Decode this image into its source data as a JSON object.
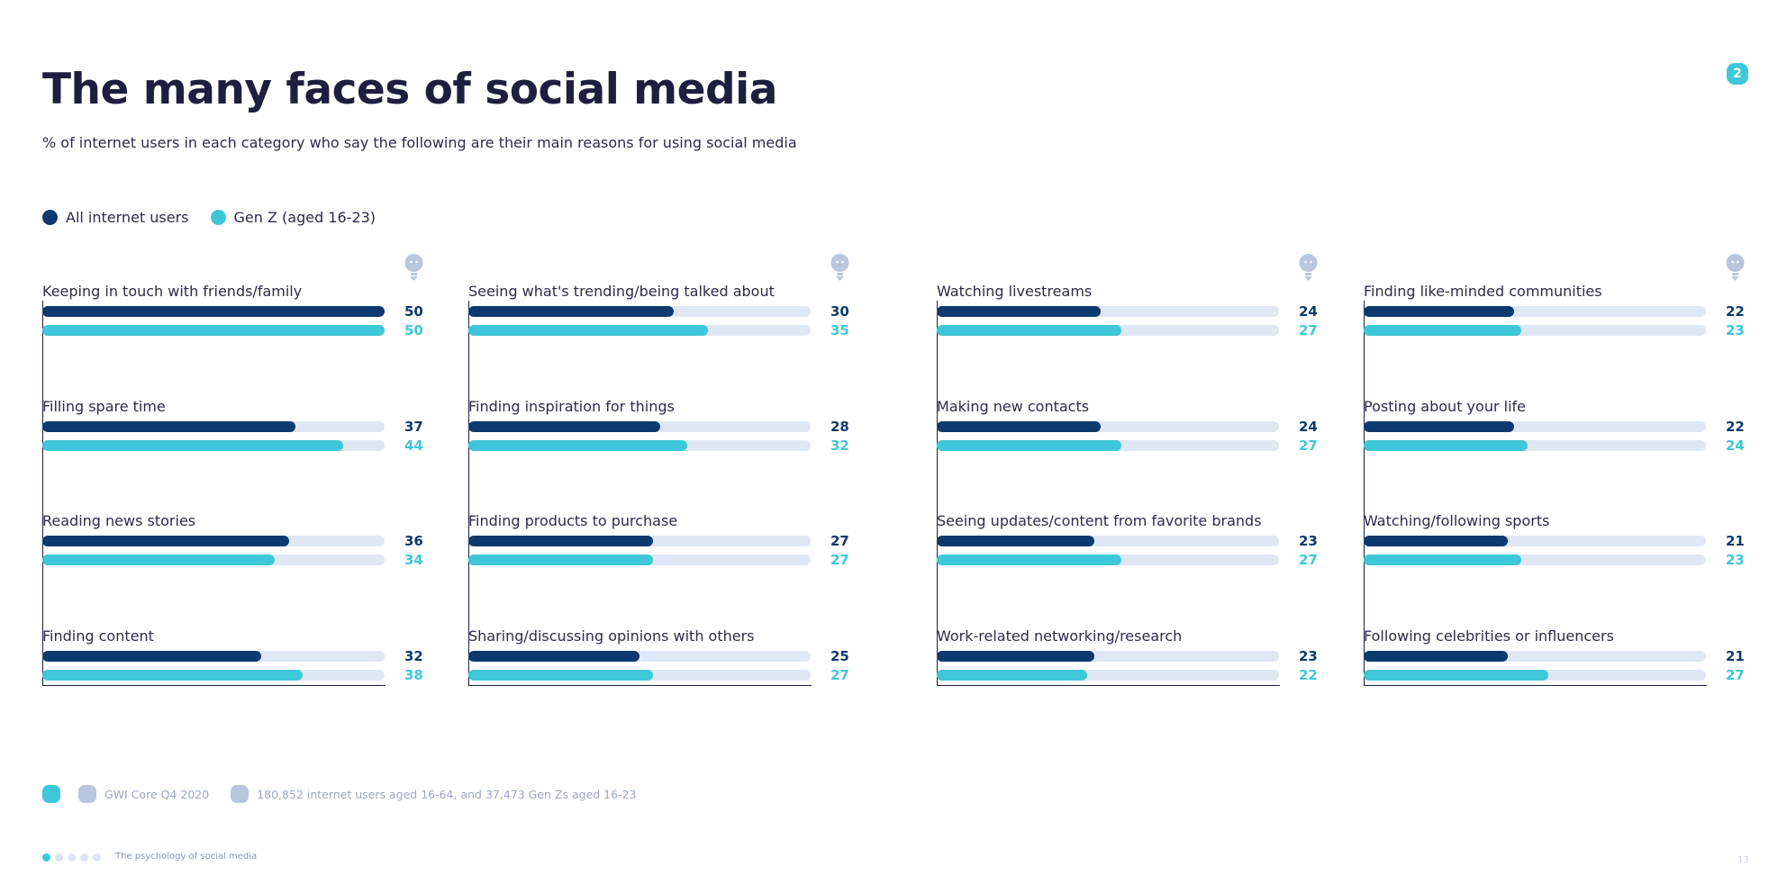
{
  "title": "The many faces of social media",
  "subtitle": "% of internet users in each category who say the following are their main reasons for using social media",
  "page_badge": "2",
  "legend": [
    {
      "label": "All internet users",
      "color": "#0c3a6e"
    },
    {
      "label": "Gen Z (aged 16-23)",
      "color": "#3ec7d8"
    }
  ],
  "colors": {
    "all": "#0c3a6e",
    "genz": "#3ec7d8",
    "track": "#dfe6f4"
  },
  "icons": {
    "panel": "lightbulb-icon",
    "footer_badge": "info-icon",
    "source": "database-icon",
    "base": "people-icon"
  },
  "chart_data": {
    "type": "bar",
    "orientation": "horizontal",
    "xlim": [
      0,
      50
    ],
    "series": [
      {
        "name": "All internet users"
      },
      {
        "name": "Gen Z (aged 16-23)"
      }
    ],
    "panels": [
      {
        "rows": [
          {
            "label": "Keeping in touch with friends/family",
            "all": 50,
            "genz": 50
          },
          {
            "label": "Filling spare time",
            "all": 37,
            "genz": 44
          },
          {
            "label": "Reading news stories",
            "all": 36,
            "genz": 34
          },
          {
            "label": "Finding content",
            "all": 32,
            "genz": 38
          }
        ]
      },
      {
        "rows": [
          {
            "label": "Seeing what's trending/being talked about",
            "all": 30,
            "genz": 35
          },
          {
            "label": "Finding inspiration for things",
            "all": 28,
            "genz": 32
          },
          {
            "label": "Finding products to purchase",
            "all": 27,
            "genz": 27
          },
          {
            "label": "Sharing/discussing opinions with others",
            "all": 25,
            "genz": 27
          }
        ]
      },
      {
        "rows": [
          {
            "label": "Watching livestreams",
            "all": 24,
            "genz": 27
          },
          {
            "label": "Making new contacts",
            "all": 24,
            "genz": 27
          },
          {
            "label": "Seeing updates/content from favorite brands",
            "all": 23,
            "genz": 27
          },
          {
            "label": "Work-related networking/research",
            "all": 23,
            "genz": 22
          }
        ]
      },
      {
        "rows": [
          {
            "label": "Finding like-minded communities",
            "all": 22,
            "genz": 23
          },
          {
            "label": "Posting about your life",
            "all": 22,
            "genz": 24
          },
          {
            "label": "Watching/following sports",
            "all": 21,
            "genz": 23
          },
          {
            "label": "Following celebrities or influencers",
            "all": 21,
            "genz": 27
          }
        ]
      }
    ]
  },
  "footer": {
    "source": "GWI Core Q4 2020",
    "base": "180,852 internet users aged 16-64, and 37,473 Gen Zs aged 16-23"
  },
  "nav": {
    "deck_title": "The psychology of social media",
    "page_number": "13",
    "dots": 5,
    "active_dot": 0
  }
}
